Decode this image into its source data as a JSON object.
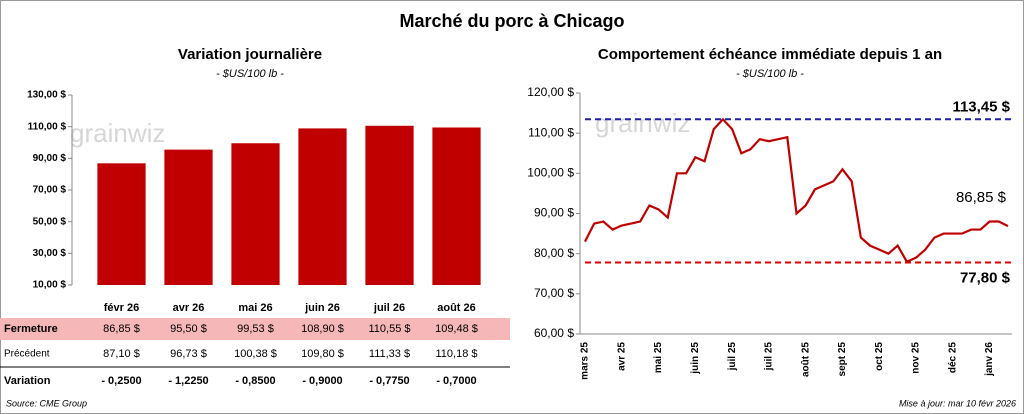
{
  "title": "Marché du porc à Chicago",
  "watermark": "grainwiz",
  "chart_data": [
    {
      "type": "bar",
      "title": "Variation journalière",
      "subtitle": "- $US/100 lb -",
      "categories": [
        "févr 26",
        "avr 26",
        "mai 26",
        "juin 26",
        "juil 26",
        "août 26"
      ],
      "values": [
        86.85,
        95.5,
        99.53,
        108.9,
        110.55,
        109.48
      ],
      "value_labels": [
        "86,85  $",
        "95,50  $",
        "99,53  $",
        "108,90  $",
        "110,55  $",
        "109,48  $"
      ],
      "color": "#c00000",
      "ylim": [
        10,
        130
      ],
      "yticks": [
        {
          "value": 10,
          "label": "10,00 $"
        },
        {
          "value": 30,
          "label": "30,00 $"
        },
        {
          "value": 50,
          "label": "50,00 $"
        },
        {
          "value": 70,
          "label": "70,00 $"
        },
        {
          "value": 90,
          "label": "90,00 $"
        },
        {
          "value": 110,
          "label": "110,00 $"
        },
        {
          "value": 130,
          "label": "130,00 $"
        }
      ]
    },
    {
      "type": "line",
      "title": "Comportement échéance immédiate depuis 1 an",
      "subtitle": "- $US/100 lb -",
      "categories": [
        "mars 25",
        null,
        null,
        null,
        "avr 25",
        null,
        null,
        null,
        "mai 25",
        null,
        null,
        null,
        "juin 25",
        null,
        null,
        null,
        "juil 25",
        null,
        null,
        null,
        "juil 25",
        null,
        null,
        null,
        "août 25",
        null,
        null,
        null,
        "sept 25",
        null,
        null,
        null,
        "oct 25",
        null,
        null,
        null,
        "nov 25",
        null,
        null,
        null,
        "déc 25",
        null,
        null,
        null,
        "janv 26",
        null,
        null
      ],
      "series": [
        {
          "color": "#c00000",
          "values": [
            83,
            87.5,
            88,
            86,
            87,
            87.5,
            88,
            92,
            91,
            89,
            100,
            100,
            104,
            103,
            111,
            113.45,
            111,
            105,
            106,
            108.5,
            108,
            108.5,
            109,
            90,
            92,
            96,
            97,
            98,
            101,
            98,
            84,
            82,
            81,
            80,
            82,
            78,
            79,
            81,
            84,
            85,
            85,
            85,
            86,
            86,
            88,
            88,
            86.85
          ],
          "value_labels": [
            null,
            null,
            null,
            null,
            null,
            null,
            null,
            null,
            null,
            null,
            null,
            null,
            null,
            null,
            null,
            null,
            null,
            null,
            null,
            null,
            null,
            null,
            null,
            null,
            null,
            null,
            null,
            null,
            null,
            null,
            null,
            null,
            null,
            null,
            null,
            null,
            null,
            null,
            null,
            null,
            null,
            null,
            null,
            null,
            null,
            null,
            "86,85 $"
          ]
        }
      ],
      "reference_lines": [
        {
          "value": 113.45,
          "label": "113,45 $",
          "color": "#1f1fa8"
        },
        {
          "value": 77.8,
          "label": "77,80 $",
          "color": "#e00000"
        }
      ],
      "ylim": [
        60,
        120
      ],
      "yticks": [
        {
          "value": 60,
          "label": "60,00 $"
        },
        {
          "value": 70,
          "label": "70,00 $"
        },
        {
          "value": 80,
          "label": "80,00 $"
        },
        {
          "value": 90,
          "label": "90,00 $"
        },
        {
          "value": 100,
          "label": "100,00 $"
        },
        {
          "value": 110,
          "label": "110,00 $"
        },
        {
          "value": 120,
          "label": "120,00 $"
        }
      ]
    }
  ],
  "table": {
    "rows": [
      {
        "label": "Fermeture"
      },
      {
        "label": "Précédent",
        "cells": [
          "87,10  $",
          "96,73  $",
          "100,38  $",
          "109,80  $",
          "111,33  $",
          "110,18  $"
        ]
      },
      {
        "label": "Variation",
        "cells": [
          "- 0,2500",
          "- 1,2250",
          "- 0,8500",
          "- 0,9000",
          "- 0,7750",
          "- 0,7000"
        ]
      }
    ]
  },
  "source": "Source: CME Group",
  "updated": "Mise à jour: mar 10 févr 2026"
}
